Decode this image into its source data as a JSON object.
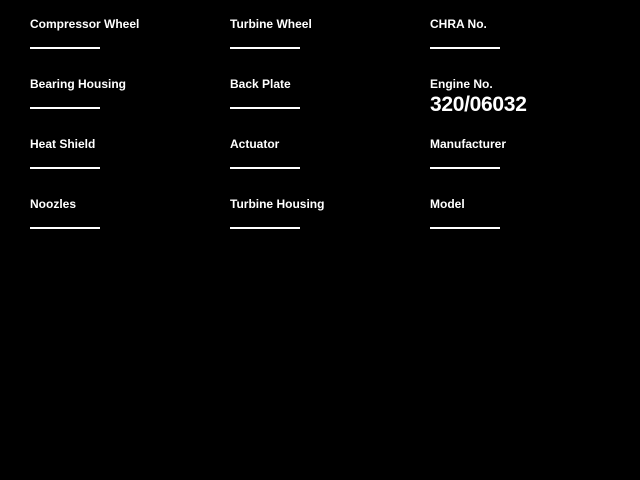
{
  "screen": {
    "background_color": "#000000",
    "text_color": "#ffffff"
  },
  "form": {
    "columns": [
      {
        "fields": [
          {
            "label": "Compressor Wheel",
            "value": ""
          },
          {
            "label": "Bearing Housing",
            "value": ""
          },
          {
            "label": "Heat Shield",
            "value": ""
          },
          {
            "label": "Noozles",
            "value": ""
          }
        ]
      },
      {
        "fields": [
          {
            "label": "Turbine Wheel",
            "value": ""
          },
          {
            "label": "Back Plate",
            "value": ""
          },
          {
            "label": "Actuator",
            "value": ""
          },
          {
            "label": "Turbine Housing",
            "value": ""
          }
        ]
      },
      {
        "fields": [
          {
            "label": "CHRA No.",
            "value": ""
          },
          {
            "label": "Engine No.",
            "value": "320/06032"
          },
          {
            "label": "Manufacturer",
            "value": ""
          },
          {
            "label": "Model",
            "value": ""
          }
        ]
      }
    ]
  }
}
